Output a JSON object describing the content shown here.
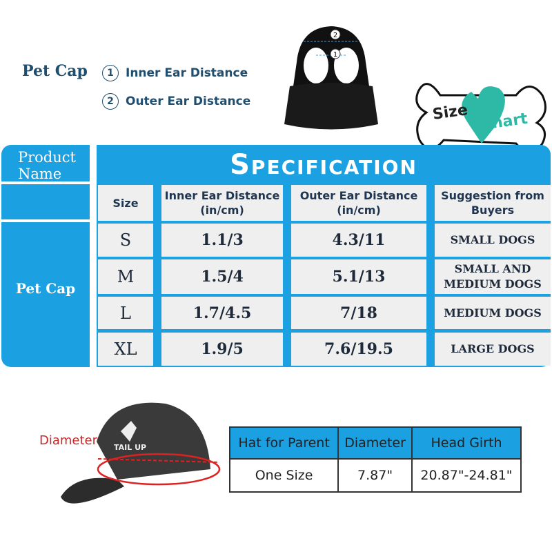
{
  "legend": {
    "title": "Pet Cap",
    "items": [
      {
        "num": "1",
        "label": "Inner Ear Distance"
      },
      {
        "num": "2",
        "label": "Outer Ear Distance"
      }
    ]
  },
  "badge": {
    "word1": "Size",
    "word2": "Chart",
    "colors": {
      "heart": "#2db9a6",
      "text1": "#222222",
      "text2": "#2db9a6"
    }
  },
  "spec": {
    "product_header": "Product Name",
    "title": "Specification",
    "product": "Pet Cap",
    "columns": [
      "Size",
      "Inner Ear Distance (in/cm)",
      "Outer Ear Distance (in/cm)",
      "Suggestion from Buyers"
    ],
    "rows": [
      [
        "S",
        "1.1/3",
        "4.3/11",
        "SMALL DOGS"
      ],
      [
        "M",
        "1.5/4",
        "5.1/13",
        "SMALL AND MEDIUM DOGS"
      ],
      [
        "L",
        "1.7/4.5",
        "7/18",
        "MEDIUM DOGS"
      ],
      [
        "XL",
        "1.9/5",
        "7.6/19.5",
        "LARGE DOGS"
      ]
    ],
    "accent": "#1ba0e2"
  },
  "parent": {
    "diameter_label": "Diameter",
    "cap_logo": "TAIL UP",
    "columns": [
      "Hat for Parent",
      "Diameter",
      "Head Girth"
    ],
    "row": [
      "One Size",
      "7.87\"",
      "20.87\"-24.81\""
    ]
  }
}
